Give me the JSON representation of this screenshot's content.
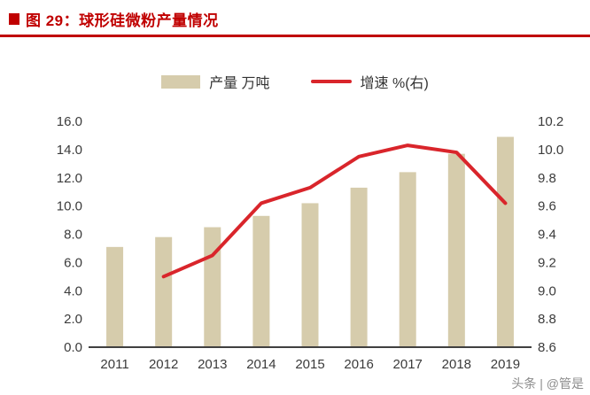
{
  "header": {
    "title": "图 29：球形硅微粉产量情况"
  },
  "colors": {
    "accent": "#C00000",
    "bar": "#D6CCAC",
    "line": "#D9252B",
    "axis_text": "#3B3B3B"
  },
  "watermark": "头条 | @管是",
  "chart_data": {
    "type": "bar+line",
    "title": "球形硅微粉产量情况",
    "categories": [
      "2011",
      "2012",
      "2013",
      "2014",
      "2015",
      "2016",
      "2017",
      "2018",
      "2019"
    ],
    "series": [
      {
        "name": "产量 万吨",
        "type": "bar",
        "axis": "left",
        "color": "#D6CCAC",
        "values": [
          7.1,
          7.8,
          8.5,
          9.3,
          10.2,
          11.3,
          12.4,
          13.7,
          14.9
        ]
      },
      {
        "name": "增速 %(右)",
        "type": "line",
        "axis": "right",
        "color": "#D9252B",
        "values": [
          null,
          9.1,
          9.25,
          9.62,
          9.73,
          9.95,
          10.03,
          9.98,
          9.62
        ]
      }
    ],
    "left_axis": {
      "min": 0.0,
      "max": 16.0,
      "step": 2.0,
      "labels": [
        "0.0",
        "2.0",
        "4.0",
        "6.0",
        "8.0",
        "10.0",
        "12.0",
        "14.0",
        "16.0"
      ]
    },
    "right_axis": {
      "min": 8.6,
      "max": 10.2,
      "step": 0.2,
      "labels": [
        "8.6",
        "8.8",
        "9.0",
        "9.2",
        "9.4",
        "9.6",
        "9.8",
        "10.0",
        "10.2"
      ]
    },
    "grid": false,
    "legend_position": "top-center"
  }
}
